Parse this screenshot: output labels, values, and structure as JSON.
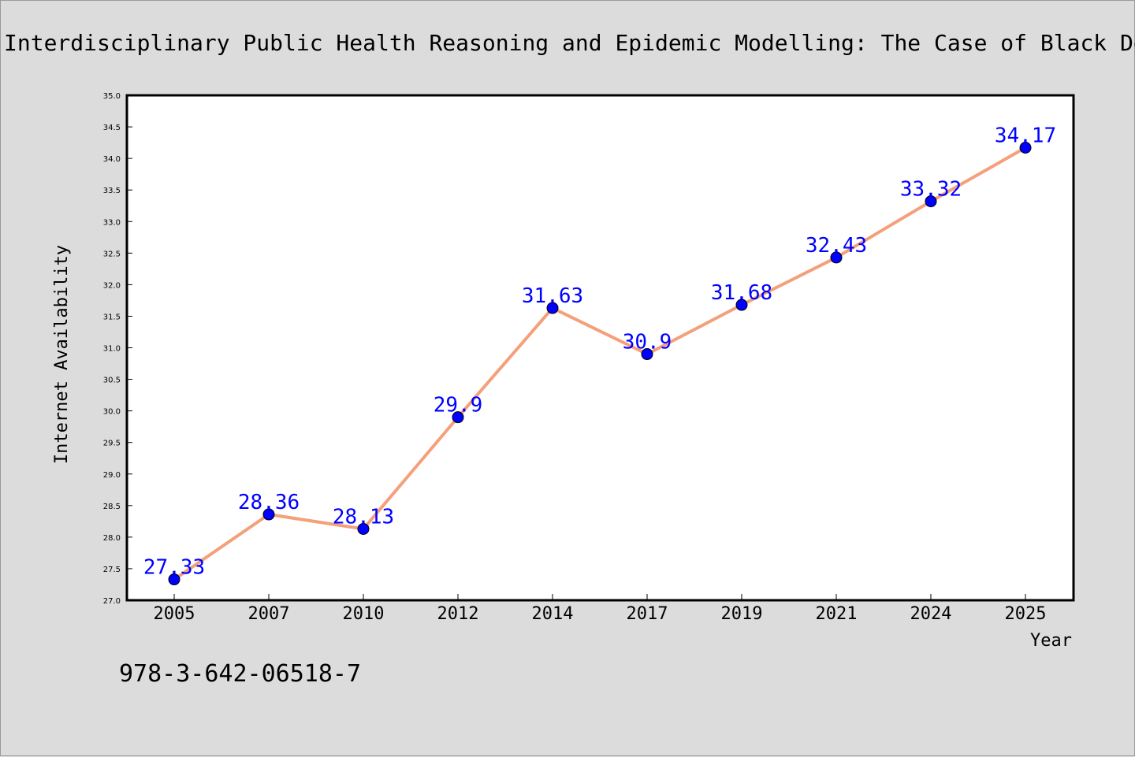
{
  "title": "Interdisciplinary Public Health Reasoning and Epidemic Modelling: The Case of Black Death",
  "footer_text": "978-3-642-06518-7",
  "colors": {
    "background": "#dcdcdc",
    "plot_background": "#ffffff",
    "line": "#f4a07a",
    "marker": "#0000ff",
    "data_label": "#0000ff"
  },
  "chart_data": {
    "type": "line",
    "xlabel": "Year",
    "ylabel": "Internet Availability",
    "categories": [
      "2005",
      "2007",
      "2010",
      "2012",
      "2014",
      "2017",
      "2019",
      "2021",
      "2024",
      "2025"
    ],
    "values": [
      27.33,
      28.36,
      28.13,
      29.9,
      31.63,
      30.9,
      31.68,
      32.43,
      33.32,
      34.17
    ],
    "data_labels": [
      "27.33",
      "28.36",
      "28.13",
      "29.9",
      "31.63",
      "30.9",
      "31.68",
      "32.43",
      "33.32",
      "34.17"
    ],
    "ylim": [
      27.0,
      35.0
    ],
    "yticks": [
      "27.0",
      "27.5",
      "28.0",
      "28.5",
      "29.0",
      "29.5",
      "30.0",
      "30.5",
      "31.0",
      "31.5",
      "32.0",
      "32.5",
      "33.0",
      "33.5",
      "34.0",
      "34.5",
      "35.0"
    ],
    "grid": false,
    "legend": "none"
  }
}
